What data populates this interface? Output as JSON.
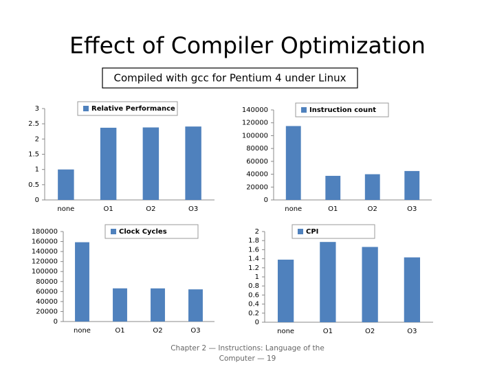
{
  "slide": {
    "title": "Effect of Compiler Optimization",
    "subtitle": "Compiled with gcc for Pentium 4 under Linux",
    "footer": "Chapter 2 — Instructions: Language of the Computer — 19"
  },
  "chart_data": [
    {
      "type": "bar",
      "categories": [
        "none",
        "O1",
        "O2",
        "O3"
      ],
      "series": [
        {
          "name": "Relative Performance",
          "color": "#4f81bd",
          "values": [
            1,
            2.37,
            2.38,
            2.41
          ]
        }
      ],
      "ylim": [
        0,
        3
      ],
      "yticks": [
        0,
        0.5,
        1,
        1.5,
        2,
        2.5,
        3
      ],
      "legend": "top"
    },
    {
      "type": "bar",
      "categories": [
        "none",
        "O1",
        "O2",
        "O3"
      ],
      "series": [
        {
          "name": "Instruction count",
          "color": "#4f81bd",
          "values": [
            114938,
            37470,
            39993,
            44993
          ]
        }
      ],
      "ylim": [
        0,
        140000
      ],
      "yticks": [
        0,
        20000,
        40000,
        60000,
        80000,
        100000,
        120000,
        140000
      ],
      "legend": "top"
    },
    {
      "type": "bar",
      "categories": [
        "none",
        "O1",
        "O2",
        "O3"
      ],
      "series": [
        {
          "name": "Clock Cycles",
          "color": "#4f81bd",
          "values": [
            158615,
            66365,
            66304,
            64360
          ]
        }
      ],
      "ylim": [
        0,
        180000
      ],
      "yticks": [
        0,
        20000,
        40000,
        60000,
        80000,
        100000,
        120000,
        140000,
        160000,
        180000
      ],
      "legend": "top"
    },
    {
      "type": "bar",
      "categories": [
        "none",
        "O1",
        "O2",
        "O3"
      ],
      "series": [
        {
          "name": "CPI",
          "color": "#4f81bd",
          "values": [
            1.38,
            1.77,
            1.66,
            1.43
          ]
        }
      ],
      "ylim": [
        0,
        2
      ],
      "yticks": [
        0,
        0.2,
        0.4,
        0.6,
        0.8,
        1,
        1.2,
        1.4,
        1.6,
        1.8,
        2
      ],
      "legend": "top"
    }
  ]
}
